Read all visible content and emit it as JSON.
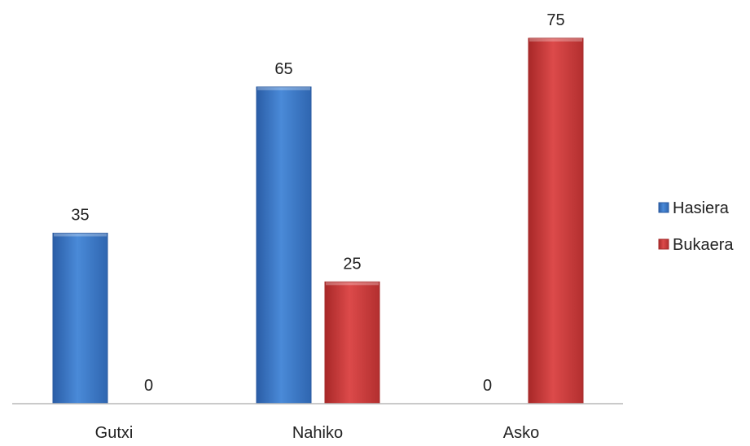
{
  "chart_data": {
    "type": "bar",
    "title": "",
    "xlabel": "",
    "ylabel": "",
    "categories": [
      "Gutxi",
      "Nahiko",
      "Asko"
    ],
    "series": [
      {
        "name": "Hasiera",
        "values": [
          35,
          65,
          0
        ],
        "color": "#3f7ac9"
      },
      {
        "name": "Bukaera",
        "values": [
          0,
          25,
          75
        ],
        "color": "#cf3b3b"
      }
    ],
    "ylim": [
      0,
      75
    ],
    "grid": false,
    "legend_position": "right",
    "data_labels": true
  }
}
